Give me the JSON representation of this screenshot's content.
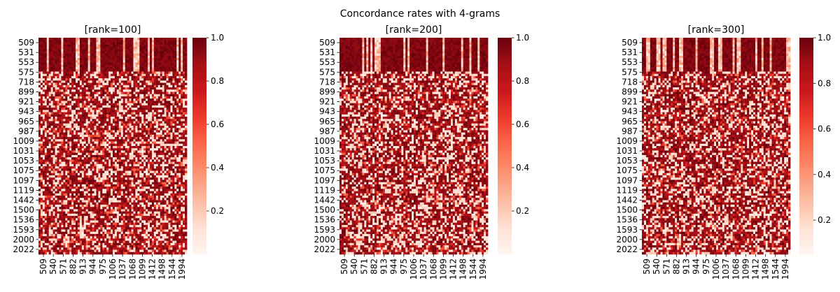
{
  "figure": {
    "suptitle": "Concordance rates with 4-grams"
  },
  "colormap": {
    "name": "Reds",
    "stops": [
      "#fff5f0",
      "#fee0d2",
      "#fcbba1",
      "#fc9272",
      "#fb6a4a",
      "#ef3b2c",
      "#cb181d",
      "#a50f15",
      "#67000d"
    ]
  },
  "chart_data": [
    {
      "type": "heatmap",
      "title": "[rank=100]",
      "ytick_labels": [
        "509",
        "531",
        "553",
        "575",
        "718",
        "899",
        "921",
        "943",
        "965",
        "987",
        "1009",
        "1031",
        "1053",
        "1075",
        "1097",
        "1119",
        "1442",
        "1500",
        "1536",
        "1593",
        "2000",
        "2022"
      ],
      "xtick_labels": [
        "509",
        "540",
        "571",
        "882",
        "913",
        "944",
        "975",
        "1006",
        "1037",
        "1068",
        "1099",
        "1412",
        "1498",
        "1544",
        "1994"
      ],
      "colorbar": {
        "ticks": [
          0.2,
          0.4,
          0.6,
          0.8,
          1.0
        ],
        "tick_labels": [
          "0.2",
          "0.4",
          "0.6",
          "0.8",
          "1.0"
        ],
        "range": [
          0.0,
          1.0
        ]
      },
      "value_range": [
        0.0,
        1.0
      ],
      "mean_value": 0.72
    },
    {
      "type": "heatmap",
      "title": "[rank=200]",
      "ytick_labels": [
        "509",
        "531",
        "553",
        "575",
        "718",
        "899",
        "921",
        "943",
        "965",
        "987",
        "1009",
        "1031",
        "1053",
        "1075",
        "1097",
        "1119",
        "1442",
        "1500",
        "1536",
        "1593",
        "2000",
        "2022"
      ],
      "xtick_labels": [
        "509",
        "540",
        "571",
        "882",
        "913",
        "944",
        "975",
        "1006",
        "1037",
        "1068",
        "1099",
        "1412",
        "1498",
        "1544",
        "1994"
      ],
      "colorbar": {
        "ticks": [
          0.2,
          0.4,
          0.6,
          0.8,
          1.0
        ],
        "tick_labels": [
          "0.2",
          "0.4",
          "0.6",
          "0.8",
          "1.0"
        ],
        "range": [
          0.0,
          1.0
        ]
      },
      "value_range": [
        0.0,
        1.0
      ],
      "mean_value": 0.7
    },
    {
      "type": "heatmap",
      "title": "[rank=300]",
      "ytick_labels": [
        "509",
        "531",
        "553",
        "575",
        "718",
        "899",
        "921",
        "943",
        "965",
        "987",
        "1009",
        "1031",
        "1053",
        "1075",
        "1097",
        "1119",
        "1442",
        "1500",
        "1536",
        "1593",
        "2000",
        "2022"
      ],
      "xtick_labels": [
        "509",
        "540",
        "571",
        "882",
        "913",
        "944",
        "975",
        "1006",
        "1037",
        "1068",
        "1099",
        "1412",
        "1498",
        "1544",
        "1994"
      ],
      "colorbar": {
        "ticks": [
          0.2,
          0.4,
          0.6,
          0.8,
          1.0
        ],
        "tick_labels": [
          "0.2",
          "0.4",
          "0.6",
          "0.8",
          "1.0"
        ],
        "range": [
          0.05,
          1.0
        ]
      },
      "value_range": [
        0.05,
        1.0
      ],
      "mean_value": 0.72
    }
  ]
}
